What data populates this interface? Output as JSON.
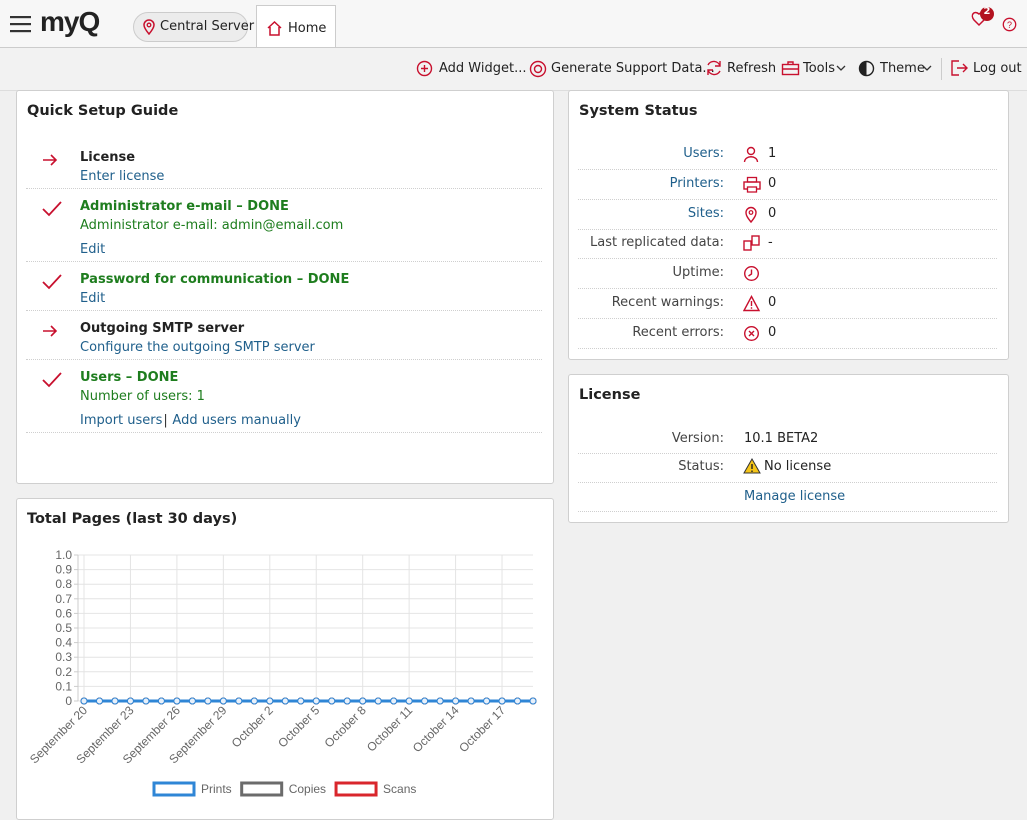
{
  "header": {
    "logo": "myQ",
    "server": "Central Server",
    "tab": "Home",
    "badge": "2"
  },
  "toolbar": [
    "Add Widget...",
    "Generate Support Data...",
    "Refresh",
    "Tools",
    "Theme",
    "Log out"
  ],
  "quick_setup": {
    "title": "Quick Setup Guide",
    "separator": "|",
    "items": [
      {
        "title": "License",
        "links": [
          "Enter license"
        ]
      },
      {
        "title": "Administrator e-mail – DONE",
        "text": "Administrator e-mail: admin@email.com",
        "links": [
          "Edit"
        ]
      },
      {
        "title": "Password for communication – DONE",
        "links": [
          "Edit"
        ]
      },
      {
        "title": "Outgoing SMTP server",
        "links": [
          "Configure the outgoing SMTP server"
        ]
      },
      {
        "title": "Users – DONE",
        "text": "Number of users: 1",
        "links": [
          "Import users",
          "Add users manually"
        ]
      }
    ]
  },
  "system_status": {
    "title": "System Status",
    "rows": [
      {
        "label": "Users:",
        "value": 1
      },
      {
        "label": "Printers:",
        "value": 0
      },
      {
        "label": "Sites:",
        "value": 0
      },
      {
        "label": "Last replicated data:",
        "value": "-"
      },
      {
        "label": "Uptime:"
      },
      {
        "label": "Recent warnings:",
        "value": 0
      },
      {
        "label": "Recent errors:",
        "value": 0
      }
    ]
  },
  "license": {
    "title": "License",
    "rows": [
      {
        "label": "Version:",
        "value": "10.1 BETA2"
      },
      {
        "label": "Status:",
        "value": "No license"
      }
    ],
    "link": "Manage license"
  },
  "chart_data": {
    "type": "line",
    "title": "Total Pages (last 30 days)",
    "categories": [
      "September 20",
      null,
      null,
      "September 23",
      null,
      null,
      "September 26",
      null,
      null,
      "September 29",
      null,
      null,
      "October 2",
      null,
      null,
      "October 5",
      null,
      null,
      "October 8",
      null,
      null,
      "October 11",
      null,
      null,
      "October 14",
      null,
      null,
      "October 17",
      null,
      null
    ],
    "series": [
      {
        "name": "Prints",
        "color": "#2f86d6",
        "values": [
          0,
          0,
          0,
          0,
          0,
          0,
          0,
          0,
          0,
          0,
          0,
          0,
          0,
          0,
          0,
          0,
          0,
          0,
          0,
          0,
          0,
          0,
          0,
          0,
          0,
          0,
          0,
          0,
          0,
          0
        ]
      },
      {
        "name": "Copies",
        "color": "#6b6b6b",
        "values": [
          0,
          0,
          0,
          0,
          0,
          0,
          0,
          0,
          0,
          0,
          0,
          0,
          0,
          0,
          0,
          0,
          0,
          0,
          0,
          0,
          0,
          0,
          0,
          0,
          0,
          0,
          0,
          0,
          0,
          0
        ]
      },
      {
        "name": "Scans",
        "color": "#d9262c",
        "values": [
          0,
          0,
          0,
          0,
          0,
          0,
          0,
          0,
          0,
          0,
          0,
          0,
          0,
          0,
          0,
          0,
          0,
          0,
          0,
          0,
          0,
          0,
          0,
          0,
          0,
          0,
          0,
          0,
          0,
          0
        ]
      }
    ],
    "ylim": [
      0,
      1
    ],
    "yticks": [
      0,
      0.1,
      0.2,
      0.3,
      0.4,
      0.5,
      0.6,
      0.7,
      0.8,
      0.9,
      {
        "value": 1,
        "label": "1.0"
      }
    ],
    "grid": true,
    "legend": "bottom"
  }
}
